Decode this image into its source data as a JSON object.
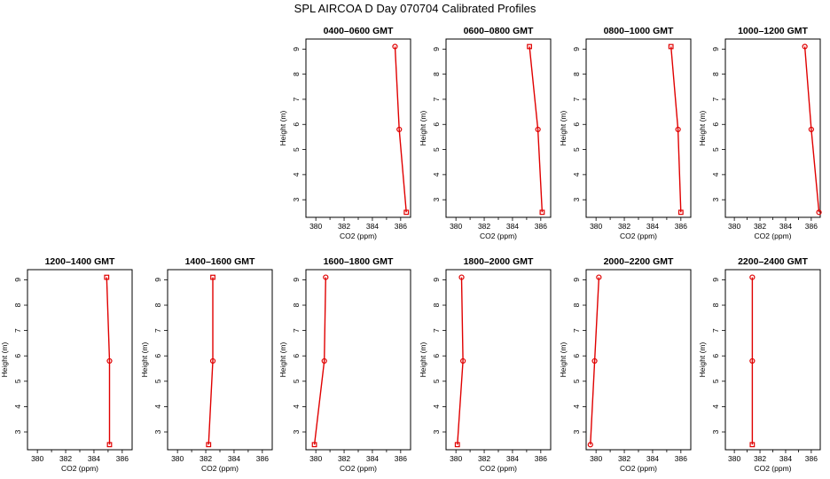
{
  "figure": {
    "title": "SPL AIRCOA D  Day 070704  Calibrated Profiles"
  },
  "colors": {
    "profile": "#e00000",
    "axes": "#000000"
  },
  "chart_data": [
    {
      "type": "line",
      "title": "0400–0600 GMT",
      "xlabel": "CO2 (ppm)",
      "ylabel": "Height (m)",
      "xlim": [
        379.3,
        386.7
      ],
      "ylim": [
        2.3,
        9.4
      ],
      "x": [
        385.6,
        385.9,
        386.4
      ],
      "y": [
        9.1,
        5.8,
        2.5
      ],
      "xticks": [
        380,
        382,
        384,
        386
      ],
      "yticks": [
        3,
        4,
        5,
        6,
        7,
        8,
        9
      ],
      "markers": [
        "circle",
        "circle",
        "square"
      ]
    },
    {
      "type": "line",
      "title": "0600–0800 GMT",
      "xlabel": "CO2 (ppm)",
      "ylabel": "Height (m)",
      "xlim": [
        379.3,
        386.7
      ],
      "ylim": [
        2.3,
        9.4
      ],
      "x": [
        385.2,
        385.8,
        386.1
      ],
      "y": [
        9.1,
        5.8,
        2.5
      ],
      "xticks": [
        380,
        382,
        384,
        386
      ],
      "yticks": [
        3,
        4,
        5,
        6,
        7,
        8,
        9
      ],
      "markers": [
        "square",
        "circle",
        "square"
      ]
    },
    {
      "type": "line",
      "title": "0800–1000 GMT",
      "xlabel": "CO2 (ppm)",
      "ylabel": "Height (m)",
      "xlim": [
        379.3,
        386.7
      ],
      "ylim": [
        2.3,
        9.4
      ],
      "x": [
        385.3,
        385.8,
        386.0
      ],
      "y": [
        9.1,
        5.8,
        2.5
      ],
      "xticks": [
        380,
        382,
        384,
        386
      ],
      "yticks": [
        3,
        4,
        5,
        6,
        7,
        8,
        9
      ],
      "markers": [
        "square",
        "circle",
        "square"
      ]
    },
    {
      "type": "line",
      "title": "1000–1200 GMT",
      "xlabel": "CO2 (ppm)",
      "ylabel": "Height (m)",
      "xlim": [
        379.3,
        386.7
      ],
      "ylim": [
        2.3,
        9.4
      ],
      "x": [
        385.5,
        386.0,
        386.6
      ],
      "y": [
        9.1,
        5.8,
        2.5
      ],
      "xticks": [
        380,
        382,
        384,
        386
      ],
      "yticks": [
        3,
        4,
        5,
        6,
        7,
        8,
        9
      ],
      "markers": [
        "circle",
        "circle",
        "circle"
      ]
    },
    {
      "type": "line",
      "title": "1200–1400 GMT",
      "xlabel": "CO2 (ppm)",
      "ylabel": "Height (m)",
      "xlim": [
        379.3,
        386.7
      ],
      "ylim": [
        2.3,
        9.4
      ],
      "x": [
        384.9,
        385.1,
        385.1
      ],
      "y": [
        9.1,
        5.8,
        2.5
      ],
      "xticks": [
        380,
        382,
        384,
        386
      ],
      "yticks": [
        3,
        4,
        5,
        6,
        7,
        8,
        9
      ],
      "markers": [
        "square",
        "circle",
        "square"
      ]
    },
    {
      "type": "line",
      "title": "1400–1600 GMT",
      "xlabel": "CO2 (ppm)",
      "ylabel": "Height (m)",
      "xlim": [
        379.3,
        386.7
      ],
      "ylim": [
        2.3,
        9.4
      ],
      "x": [
        382.5,
        382.5,
        382.2
      ],
      "y": [
        9.1,
        5.8,
        2.5
      ],
      "xticks": [
        380,
        382,
        384,
        386
      ],
      "yticks": [
        3,
        4,
        5,
        6,
        7,
        8,
        9
      ],
      "markers": [
        "square",
        "circle",
        "square"
      ]
    },
    {
      "type": "line",
      "title": "1600–1800 GMT",
      "xlabel": "CO2 (ppm)",
      "ylabel": "Height (m)",
      "xlim": [
        379.3,
        386.7
      ],
      "ylim": [
        2.3,
        9.4
      ],
      "x": [
        380.7,
        380.6,
        379.9
      ],
      "y": [
        9.1,
        5.8,
        2.5
      ],
      "xticks": [
        380,
        382,
        384,
        386
      ],
      "yticks": [
        3,
        4,
        5,
        6,
        7,
        8,
        9
      ],
      "markers": [
        "circle",
        "circle",
        "square"
      ]
    },
    {
      "type": "line",
      "title": "1800–2000 GMT",
      "xlabel": "CO2 (ppm)",
      "ylabel": "Height (m)",
      "xlim": [
        379.3,
        386.7
      ],
      "ylim": [
        2.3,
        9.4
      ],
      "x": [
        380.4,
        380.5,
        380.1
      ],
      "y": [
        9.1,
        5.8,
        2.5
      ],
      "xticks": [
        380,
        382,
        384,
        386
      ],
      "yticks": [
        3,
        4,
        5,
        6,
        7,
        8,
        9
      ],
      "markers": [
        "circle",
        "circle",
        "square"
      ]
    },
    {
      "type": "line",
      "title": "2000–2200 GMT",
      "xlabel": "CO2 (ppm)",
      "ylabel": "Height (m)",
      "xlim": [
        379.3,
        386.7
      ],
      "ylim": [
        2.3,
        9.4
      ],
      "x": [
        380.2,
        379.9,
        379.6
      ],
      "y": [
        9.1,
        5.8,
        2.5
      ],
      "xticks": [
        380,
        382,
        384,
        386
      ],
      "yticks": [
        3,
        4,
        5,
        6,
        7,
        8,
        9
      ],
      "markers": [
        "circle",
        "circle",
        "circle"
      ]
    },
    {
      "type": "line",
      "title": "2200–2400 GMT",
      "xlabel": "CO2 (ppm)",
      "ylabel": "Height (m)",
      "xlim": [
        379.3,
        386.7
      ],
      "ylim": [
        2.3,
        9.4
      ],
      "x": [
        381.4,
        381.4,
        381.4
      ],
      "y": [
        9.1,
        5.8,
        2.5
      ],
      "xticks": [
        380,
        382,
        384,
        386
      ],
      "yticks": [
        3,
        4,
        5,
        6,
        7,
        8,
        9
      ],
      "markers": [
        "circle",
        "circle",
        "square"
      ]
    }
  ]
}
